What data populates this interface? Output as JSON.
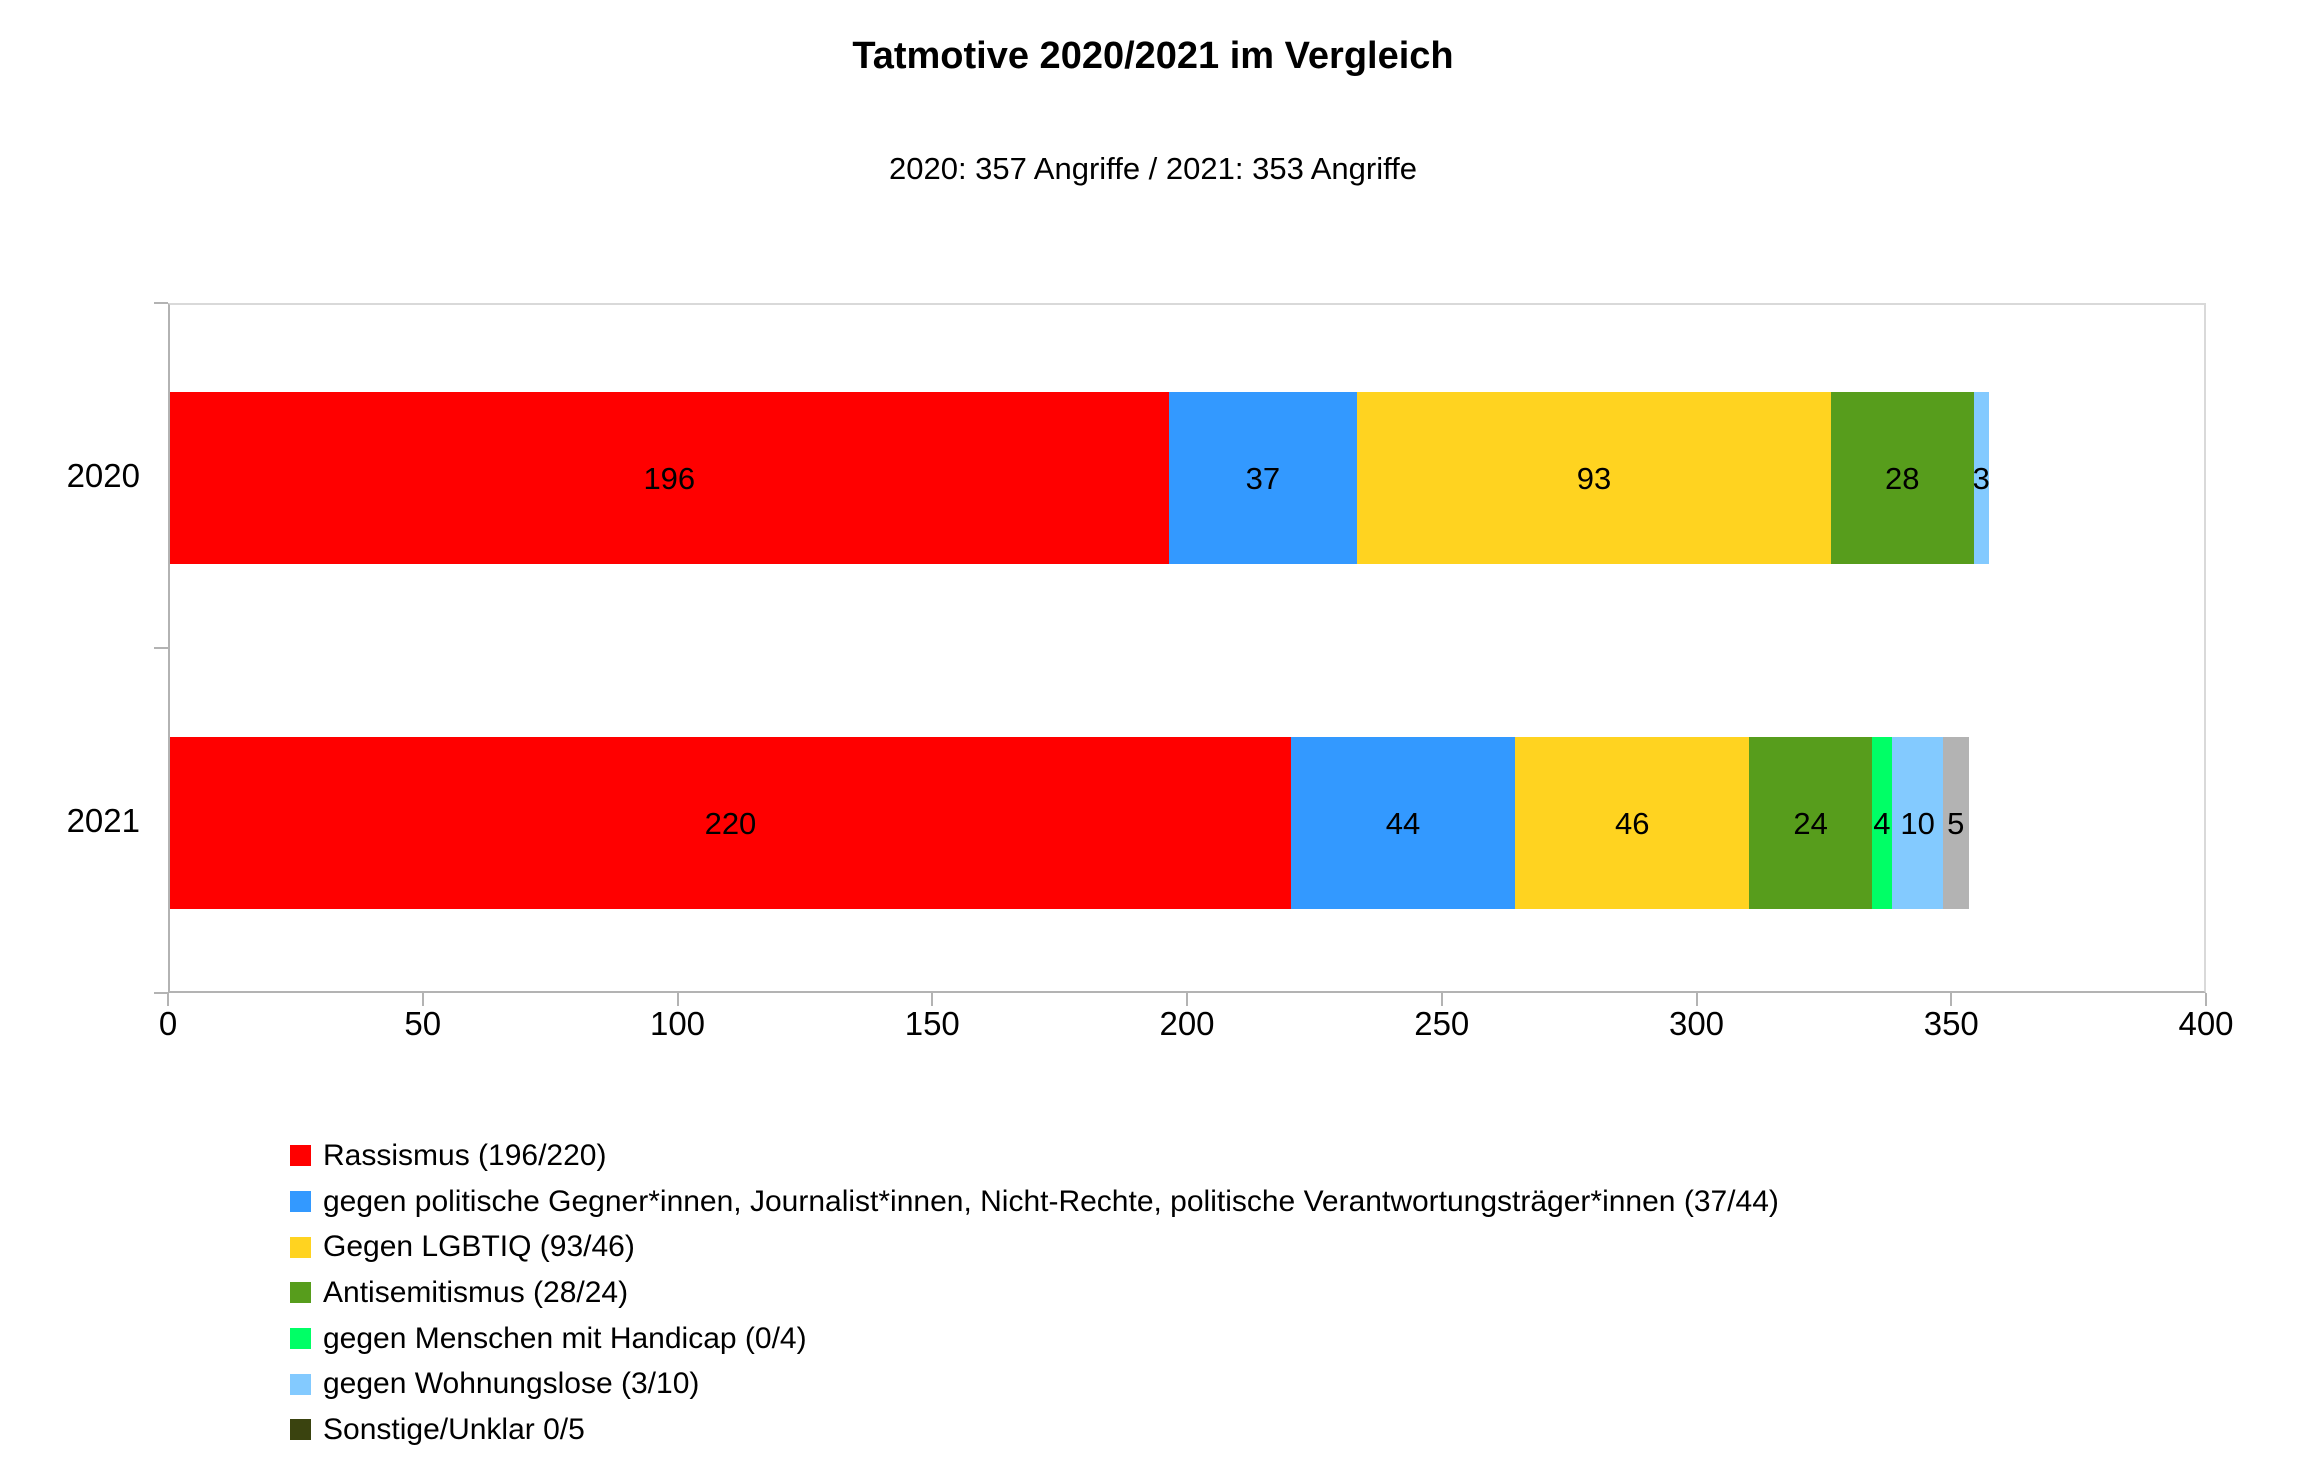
{
  "title": "Tatmotive 2020/2021 im Vergleich",
  "subtitle": "2020: 357 Angriffe / 2021: 353 Angriffe",
  "chart_data": {
    "type": "bar",
    "orientation": "horizontal",
    "stacked": true,
    "title": "Tatmotive 2020/2021 im Vergleich",
    "subtitle": "2020: 357 Angriffe / 2021: 353 Angriffe",
    "categories": [
      "2020",
      "2021"
    ],
    "totals": [
      357,
      353
    ],
    "xlim": [
      0,
      400
    ],
    "x_ticks": [
      0,
      50,
      100,
      150,
      200,
      250,
      300,
      350,
      400
    ],
    "grid": false,
    "legend_position": "bottom-left",
    "value_labels": "inside-center",
    "series": [
      {
        "name": "Rassismus (196/220)",
        "color": "#ff0000",
        "values": [
          196,
          220
        ]
      },
      {
        "name": "gegen politische Gegner*innen, Journalist*innen, Nicht-Rechte, politische Verantwortungsträger*innen (37/44)",
        "color": "#3399ff",
        "values": [
          37,
          44
        ]
      },
      {
        "name": "Gegen LGBTIQ (93/46)",
        "color": "#ffd320",
        "values": [
          93,
          46
        ]
      },
      {
        "name": "Antisemitismus (28/24)",
        "color": "#579d1c",
        "values": [
          28,
          24
        ]
      },
      {
        "name": "gegen Menschen mit Handicap (0/4)",
        "color": "#00ff66",
        "values": [
          0,
          4
        ]
      },
      {
        "name": "gegen Wohnungslose (3/10)",
        "color": "#83caff",
        "values": [
          3,
          10
        ]
      },
      {
        "name": "Sonstige/Unklar 0/5",
        "color": "#b3b3b3",
        "legend_color": "#3a430f",
        "values": [
          0,
          5
        ]
      }
    ]
  }
}
